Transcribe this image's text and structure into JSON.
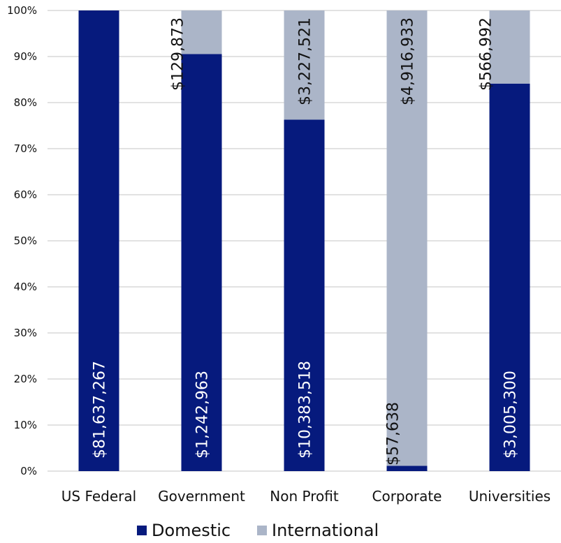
{
  "chart_data": {
    "type": "bar",
    "stacked": true,
    "normalized": true,
    "categories": [
      "US Federal",
      "Government",
      "Non Profit",
      "Corporate",
      "Universities"
    ],
    "series": [
      {
        "name": "Domestic",
        "values": [
          81637267,
          1242963,
          10383518,
          57638,
          3005300
        ],
        "labels": [
          "$81,637,267",
          "$1,242,963",
          "$10,383,518",
          "$57,638",
          "$3,005,300"
        ]
      },
      {
        "name": "International",
        "values": [
          0,
          129873,
          3227521,
          4916933,
          566992
        ],
        "labels": [
          "",
          "$129,873",
          "$3,227,521",
          "$4,916,933",
          "$566,992"
        ]
      }
    ],
    "yaxis": {
      "ticks": [
        "0%",
        "10%",
        "20%",
        "30%",
        "40%",
        "50%",
        "60%",
        "70%",
        "80%",
        "90%",
        "100%"
      ],
      "ylim": [
        0,
        1
      ]
    },
    "grid": true,
    "legend_position": "bottom",
    "colors": {
      "Domestic": "#061A7D",
      "International": "#ABB5C8",
      "grid": "#D9D9D9",
      "text": "#111111"
    }
  }
}
